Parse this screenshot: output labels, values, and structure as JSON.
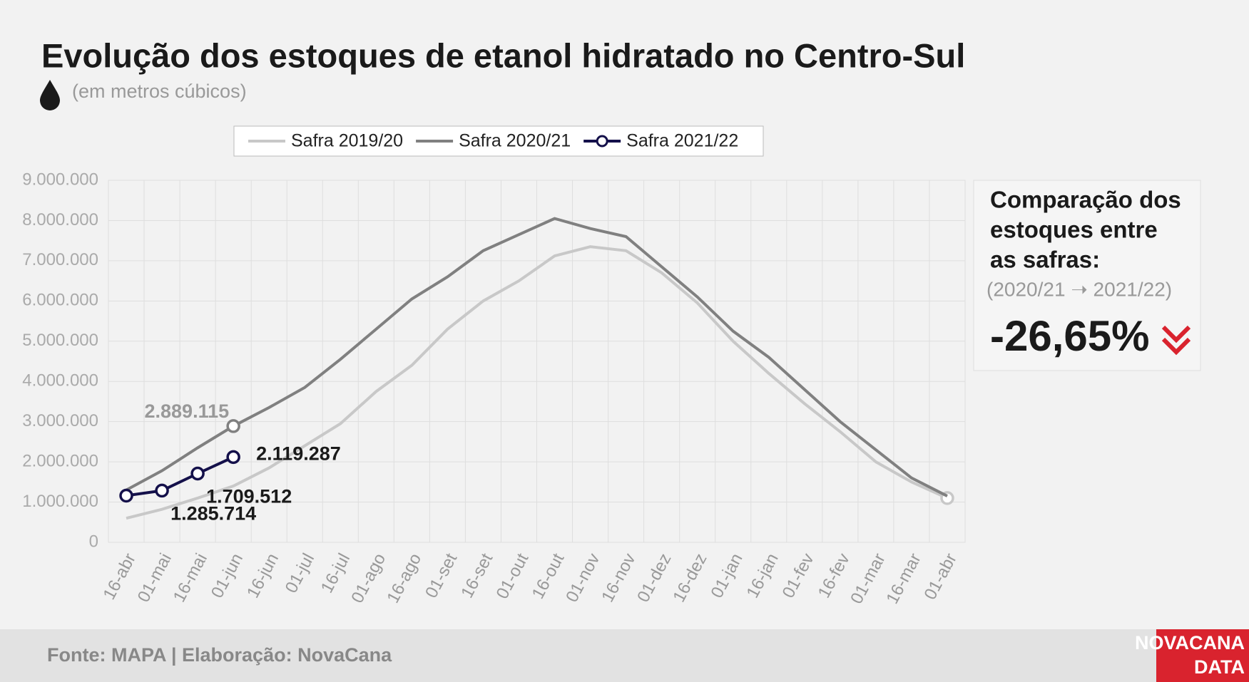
{
  "chart_data": {
    "type": "line",
    "title": "Evolução dos estoques de etanol hidratado no Centro-Sul",
    "subtitle": "(em metros cúbicos)",
    "categories": [
      "16-abr",
      "01-mai",
      "16-mai",
      "01-jun",
      "16-jun",
      "01-jul",
      "16-jul",
      "01-ago",
      "16-ago",
      "01-set",
      "16-set",
      "01-out",
      "16-out",
      "01-nov",
      "16-nov",
      "01-dez",
      "16-dez",
      "01-jan",
      "16-jan",
      "01-fev",
      "16-fev",
      "01-mar",
      "16-mar",
      "01-abr"
    ],
    "series": [
      {
        "name": "Safra 2019/20",
        "color": "#c8c8c8",
        "markers": "last",
        "values": [
          600000,
          820000,
          1100000,
          1400000,
          1850000,
          2400000,
          2950000,
          3750000,
          4400000,
          5300000,
          6000000,
          6500000,
          7120000,
          7350000,
          7250000,
          6700000,
          5950000,
          5000000,
          4200000,
          3450000,
          2750000,
          2000000,
          1500000,
          1100000
        ]
      },
      {
        "name": "Safra 2020/21",
        "color": "#808080",
        "markers": "labeled",
        "values": [
          1300000,
          1780000,
          2350000,
          2889115,
          3350000,
          3850000,
          4550000,
          5300000,
          6050000,
          6600000,
          7250000,
          7650000,
          8050000,
          7800000,
          7600000,
          6850000,
          6100000,
          5250000,
          4600000,
          3800000,
          3000000,
          2300000,
          1600000,
          1150000
        ],
        "value_labels": [
          null,
          null,
          null,
          "2.889.115",
          null,
          null,
          null,
          null,
          null,
          null,
          null,
          null,
          null,
          null,
          null,
          null,
          null,
          null,
          null,
          null,
          null,
          null,
          null,
          null
        ]
      },
      {
        "name": "Safra 2021/22",
        "color": "#14104a",
        "markers": "all",
        "values": [
          1160000,
          1285714,
          1709512,
          2119287,
          null,
          null,
          null,
          null,
          null,
          null,
          null,
          null,
          null,
          null,
          null,
          null,
          null,
          null,
          null,
          null,
          null,
          null,
          null,
          null
        ],
        "value_labels": [
          null,
          "1.285.714",
          "1.709.512",
          "2.119.287",
          null,
          null,
          null,
          null,
          null,
          null,
          null,
          null,
          null,
          null,
          null,
          null,
          null,
          null,
          null,
          null,
          null,
          null,
          null,
          null
        ]
      }
    ],
    "ylim": [
      0,
      9000000
    ],
    "yticks": [
      0,
      {
        "value": 1000000,
        "label": "1.000.000"
      },
      {
        "value": 2000000,
        "label": "2.000.000"
      },
      {
        "value": 3000000,
        "label": "3.000.000"
      },
      {
        "value": 4000000,
        "label": "4.000.000"
      },
      {
        "value": 5000000,
        "label": "5.000.000"
      },
      {
        "value": 6000000,
        "label": "6.000.000"
      },
      {
        "value": 7000000,
        "label": "7.000.000"
      },
      {
        "value": 8000000,
        "label": "8.000.000"
      },
      {
        "value": 9000000,
        "label": "9.000.000"
      }
    ],
    "grid": true,
    "legend": "top",
    "comparison": {
      "heading": [
        "Comparação dos",
        "estoques entre",
        "as safras:"
      ],
      "period": "(2020/21 ➝ 2021/22)",
      "value": "-26,65%"
    },
    "source": "Fonte: MAPA  | Elaboração: NovaCana",
    "logo": [
      "NOVACANA",
      "DATA"
    ]
  }
}
